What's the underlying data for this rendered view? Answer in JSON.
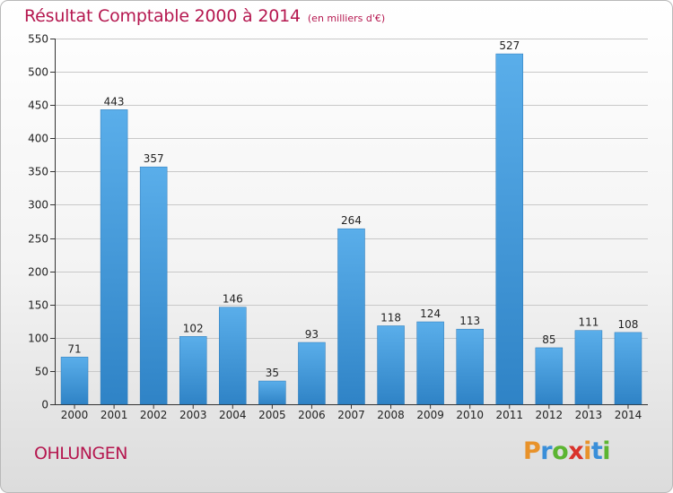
{
  "title": "Résultat Comptable 2000 à 2014",
  "unit_note": "(en milliers d'€)",
  "place": "OHLUNGEN",
  "brand": {
    "letters": [
      "P",
      "r",
      "o",
      "x",
      "i",
      "t",
      "i"
    ],
    "colors": [
      "#e8922a",
      "#3a8fd9",
      "#5cb531",
      "#d9322b",
      "#e8922a",
      "#3a8fd9",
      "#5cb531"
    ]
  },
  "colors": {
    "bar": "#4a9fe0",
    "title": "#b5174f",
    "grid": "#c8c8c8"
  },
  "chart_data": {
    "type": "bar",
    "categories": [
      "2000",
      "2001",
      "2002",
      "2003",
      "2004",
      "2005",
      "2006",
      "2007",
      "2008",
      "2009",
      "2010",
      "2011",
      "2012",
      "2013",
      "2014"
    ],
    "values": [
      71,
      443,
      357,
      102,
      146,
      35,
      93,
      264,
      118,
      124,
      113,
      527,
      85,
      111,
      108
    ],
    "ylim": [
      0,
      550
    ],
    "yticks": [
      0,
      50,
      100,
      150,
      200,
      250,
      300,
      350,
      400,
      450,
      500,
      550
    ],
    "grid": true,
    "data_labels": true
  }
}
